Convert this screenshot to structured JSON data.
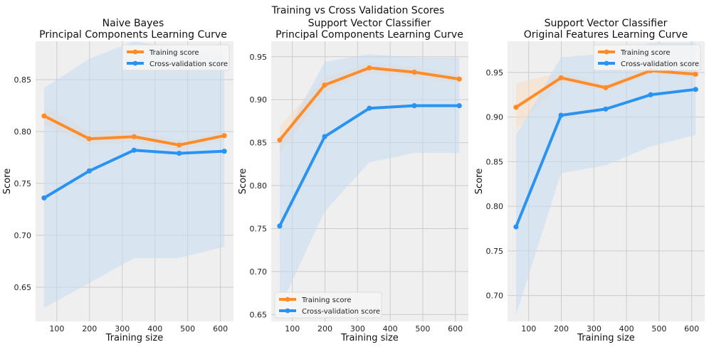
{
  "suptitle": "Training vs Cross Validation Scores",
  "colors": {
    "training": "#ff8c28",
    "cv": "#2a93f2",
    "train_band": "#f8dcc2",
    "cv_band": "#c5dcf1",
    "plot_bg": "#efefef",
    "grid": "#cbcbcb"
  },
  "chart_data": [
    {
      "type": "line",
      "title_lines": [
        "Naive Bayes",
        "Principal Components Learning Curve"
      ],
      "xlabel": "Training size",
      "ylabel": "Score",
      "xlim": [
        35,
        640
      ],
      "ylim": [
        0.617,
        0.887
      ],
      "xticks": [
        100,
        200,
        300,
        400,
        500,
        600
      ],
      "yticks": [
        0.65,
        0.7,
        0.75,
        0.8,
        0.85
      ],
      "legend_loc": "upper right",
      "x": [
        61,
        199,
        336,
        474,
        612
      ],
      "series": [
        {
          "name": "Training score",
          "key": "training",
          "values": [
            0.815,
            0.793,
            0.795,
            0.787,
            0.796
          ],
          "lower": [
            0.806,
            0.787,
            0.79,
            0.782,
            0.792
          ],
          "upper": [
            0.824,
            0.8,
            0.8,
            0.792,
            0.8
          ]
        },
        {
          "name": "Cross-validation score",
          "key": "cv",
          "values": [
            0.736,
            0.762,
            0.782,
            0.779,
            0.781
          ],
          "lower": [
            0.63,
            0.654,
            0.678,
            0.678,
            0.689
          ],
          "upper": [
            0.842,
            0.87,
            0.887,
            0.88,
            0.873
          ]
        }
      ]
    },
    {
      "type": "line",
      "title_lines": [
        "Support Vector Classifier",
        "Principal Components Learning Curve"
      ],
      "xlabel": "Training size",
      "ylabel": "Score",
      "xlim": [
        35,
        640
      ],
      "ylim": [
        0.642,
        0.968
      ],
      "xticks": [
        100,
        200,
        300,
        400,
        500,
        600
      ],
      "yticks": [
        0.65,
        0.7,
        0.75,
        0.8,
        0.85,
        0.9,
        0.95
      ],
      "legend_loc": "lower left",
      "x": [
        61,
        199,
        336,
        474,
        612
      ],
      "series": [
        {
          "name": "Training score",
          "key": "training",
          "values": [
            0.853,
            0.917,
            0.937,
            0.932,
            0.924
          ],
          "lower": [
            0.837,
            0.909,
            0.931,
            0.926,
            0.919
          ],
          "upper": [
            0.869,
            0.926,
            0.943,
            0.938,
            0.929
          ]
        },
        {
          "name": "Cross-validation score",
          "key": "cv",
          "values": [
            0.753,
            0.857,
            0.89,
            0.893,
            0.893
          ],
          "lower": [
            0.658,
            0.77,
            0.827,
            0.838,
            0.838
          ],
          "upper": [
            0.848,
            0.944,
            0.953,
            0.949,
            0.949
          ]
        }
      ]
    },
    {
      "type": "line",
      "title_lines": [
        "Support Vector Classifier",
        "Original Features Learning Curve"
      ],
      "xlabel": "Training size",
      "ylabel": "Score",
      "xlim": [
        35,
        640
      ],
      "ylim": [
        0.671,
        0.985
      ],
      "xticks": [
        100,
        200,
        300,
        400,
        500,
        600
      ],
      "yticks": [
        0.7,
        0.75,
        0.8,
        0.85,
        0.9,
        0.95
      ],
      "legend_loc": "upper right",
      "x": [
        61,
        199,
        336,
        474,
        612
      ],
      "series": [
        {
          "name": "Training score",
          "key": "training",
          "values": [
            0.911,
            0.944,
            0.933,
            0.952,
            0.948
          ],
          "lower": [
            0.885,
            0.94,
            0.929,
            0.948,
            0.945
          ],
          "upper": [
            0.938,
            0.95,
            0.937,
            0.956,
            0.952
          ]
        },
        {
          "name": "Cross-validation score",
          "key": "cv",
          "values": [
            0.777,
            0.902,
            0.909,
            0.925,
            0.931
          ],
          "lower": [
            0.678,
            0.837,
            0.846,
            0.867,
            0.88
          ],
          "upper": [
            0.88,
            0.967,
            0.971,
            0.983,
            0.983
          ]
        }
      ]
    }
  ]
}
